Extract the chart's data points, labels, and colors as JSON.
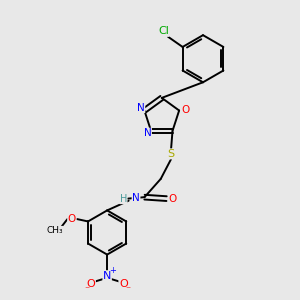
{
  "bg_color": "#e8e8e8",
  "bond_color": "#000000",
  "line_width": 1.4,
  "atom_colors": {
    "N": "#0000ff",
    "O": "#ff0000",
    "S": "#aaaa00",
    "Cl": "#00aa00",
    "C": "#000000",
    "H": "#4a9a9a"
  },
  "fig_w": 3.0,
  "fig_h": 3.0,
  "dpi": 100,
  "xlim": [
    0,
    10
  ],
  "ylim": [
    0,
    10
  ]
}
